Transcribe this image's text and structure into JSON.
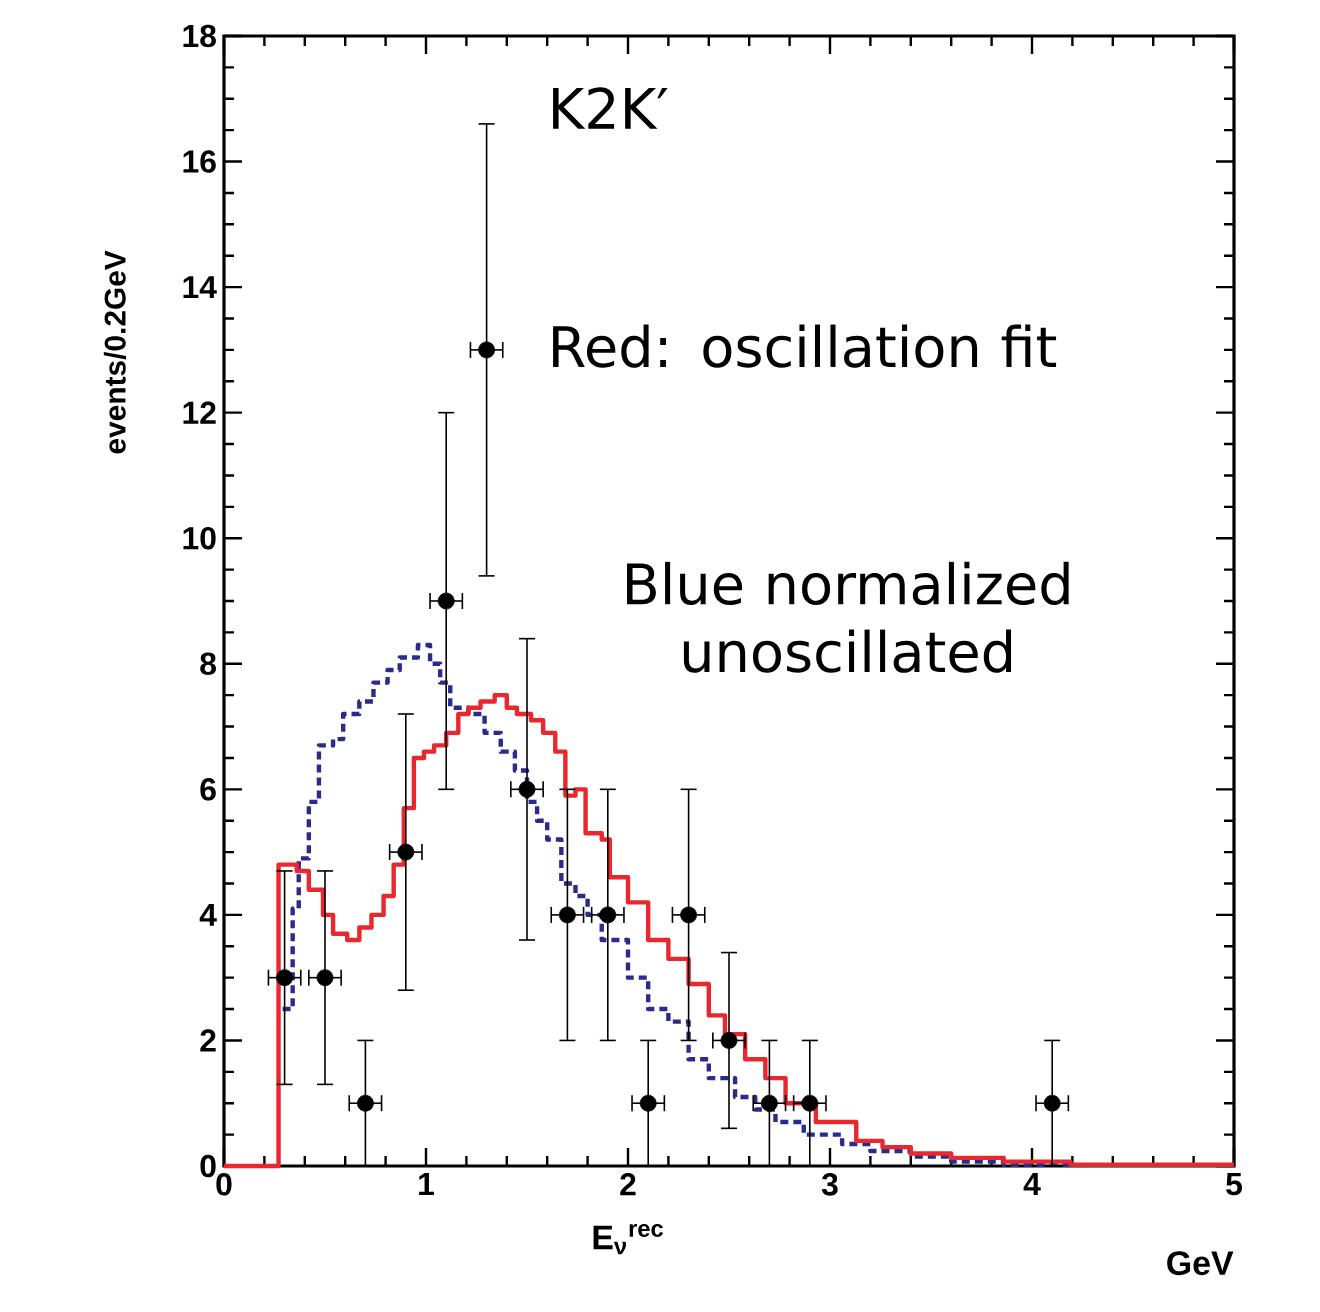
{
  "chart_data": {
    "type": "scatter",
    "ylabel": "events/0.2GeV",
    "xlabel": "E$_{ν}$$^{rec}$",
    "annotations": [
      "K2K′",
      "Red: oscillation fit",
      "Blue normalized unoscillated",
      "GeV"
    ],
    "xlim": [
      0,
      5
    ],
    "ylim": [
      0,
      18
    ],
    "xticks": [
      0,
      1,
      2,
      3,
      4,
      5
    ],
    "yticks": [
      0,
      2,
      4,
      6,
      8,
      10,
      12,
      14,
      16,
      18
    ],
    "grid": false,
    "marker": "circle",
    "series": [
      {
        "type": "step",
        "color": "#2b2b8c",
        "line_style": "dashed",
        "marker": "none",
        "x": [
          0.29,
          0.34,
          0.37,
          0.42,
          0.47,
          0.54,
          0.59,
          0.67,
          0.74,
          0.81,
          0.87,
          0.96,
          1.02,
          1.07,
          1.12,
          1.21,
          1.29,
          1.37,
          1.44,
          1.5,
          1.55,
          1.6,
          1.67,
          1.74,
          1.8,
          1.87,
          2.0,
          2.1,
          2.2,
          2.3,
          2.4,
          2.53,
          2.63,
          2.73,
          2.87,
          3.06,
          3.2,
          3.4,
          3.6,
          3.86,
          4.2
        ],
        "values": [
          2.5,
          4.1,
          4.9,
          5.8,
          6.7,
          6.8,
          7.2,
          7.4,
          7.7,
          7.9,
          8.1,
          8.3,
          8.0,
          7.7,
          7.3,
          7.2,
          6.9,
          6.6,
          6.3,
          5.8,
          5.5,
          5.2,
          4.5,
          4.3,
          4.0,
          3.6,
          3.0,
          2.5,
          2.3,
          1.7,
          1.4,
          1.1,
          0.9,
          0.7,
          0.5,
          0.35,
          0.24,
          0.15,
          0.07,
          0.02,
          0
        ]
      },
      {
        "type": "step",
        "color": "#e8282e",
        "line_style": "solid",
        "marker": "none",
        "x": [
          0,
          0.27,
          0.36,
          0.42,
          0.49,
          0.54,
          0.61,
          0.67,
          0.73,
          0.79,
          0.84,
          0.89,
          0.94,
          0.99,
          1.04,
          1.1,
          1.16,
          1.21,
          1.27,
          1.34,
          1.4,
          1.45,
          1.52,
          1.58,
          1.64,
          1.69,
          1.74,
          1.79,
          1.87,
          1.91,
          2.0,
          2.1,
          2.2,
          2.3,
          2.4,
          2.48,
          2.58,
          2.68,
          2.78,
          2.93,
          3.13,
          3.26,
          3.4,
          3.6,
          3.86,
          4.19,
          5.0
        ],
        "values": [
          0,
          4.8,
          4.7,
          4.4,
          4.0,
          3.7,
          3.6,
          3.8,
          4.0,
          4.3,
          4.8,
          5.7,
          6.5,
          6.6,
          6.7,
          6.9,
          7.2,
          7.3,
          7.4,
          7.5,
          7.3,
          7.2,
          7.1,
          6.9,
          6.6,
          5.9,
          6.0,
          5.3,
          5.2,
          4.6,
          4.2,
          3.6,
          3.3,
          2.9,
          2.4,
          2.1,
          1.7,
          1.4,
          1.0,
          0.7,
          0.4,
          0.3,
          0.2,
          0.13,
          0.07,
          0.02,
          0.02
        ]
      },
      {
        "color": "#000000",
        "x": [
          0.3,
          0.5,
          0.7,
          0.9,
          1.1,
          1.3,
          1.5,
          1.7,
          1.9,
          2.1,
          2.3,
          2.5,
          2.7,
          2.9,
          4.1
        ],
        "values": [
          3,
          3,
          1,
          5,
          9,
          13,
          6,
          4,
          4,
          1,
          4,
          2,
          1,
          1,
          1
        ],
        "errors": [
          1.7,
          1.7,
          1,
          2.2,
          3,
          3.6,
          2.4,
          2,
          2,
          1,
          2,
          1.4,
          1,
          1,
          1
        ],
        "xerrors": [
          0.08,
          0.08,
          0.08,
          0.08,
          0.08,
          0.08,
          0.08,
          0.08,
          0.08,
          0.08,
          0.08,
          0.08,
          0.08,
          0.08,
          0.08
        ]
      }
    ]
  }
}
